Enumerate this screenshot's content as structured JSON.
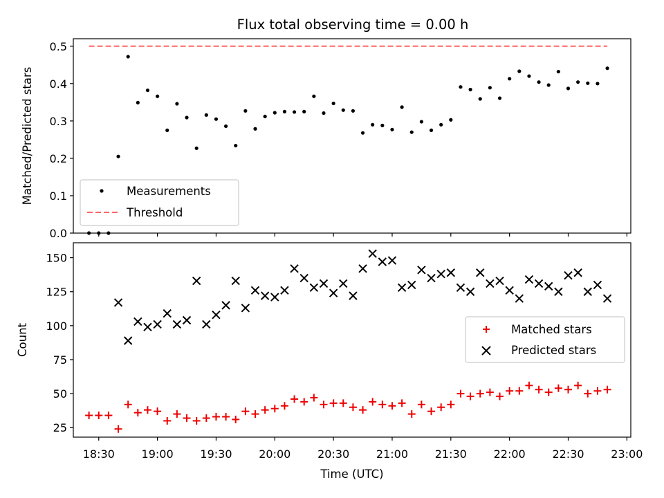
{
  "figure": {
    "title": "Flux total observing time = 0.00 h",
    "xlabel": "Time (UTC)"
  },
  "colors": {
    "measurement": "#000000",
    "threshold": "#ff6666",
    "matched": "#ee0000",
    "predicted": "#000000"
  },
  "chart_data": [
    {
      "type": "scatter",
      "ylabel": "Matched/Predicted stars",
      "ylim": [
        0,
        0.52
      ],
      "yticks": [
        0.0,
        0.1,
        0.2,
        0.3,
        0.4,
        0.5
      ],
      "ytick_labels": [
        "0.0",
        "0.1",
        "0.2",
        "0.3",
        "0.4",
        "0.5"
      ],
      "xlim": [
        "18:17",
        "23:02"
      ],
      "grid": false,
      "legend_position": "lower-left",
      "series": [
        {
          "name": "Measurements",
          "marker": "dot",
          "x": [
            "18:25",
            "18:30",
            "18:35",
            "18:40",
            "18:45",
            "18:50",
            "18:55",
            "19:00",
            "19:05",
            "19:10",
            "19:15",
            "19:20",
            "19:25",
            "19:30",
            "19:35",
            "19:40",
            "19:45",
            "19:50",
            "19:55",
            "20:00",
            "20:05",
            "20:10",
            "20:15",
            "20:20",
            "20:25",
            "20:30",
            "20:35",
            "20:40",
            "20:45",
            "20:50",
            "20:55",
            "21:00",
            "21:05",
            "21:10",
            "21:15",
            "21:20",
            "21:25",
            "21:30",
            "21:35",
            "21:40",
            "21:45",
            "21:50",
            "21:55",
            "22:00",
            "22:05",
            "22:10",
            "22:15",
            "22:20",
            "22:25",
            "22:30",
            "22:35",
            "22:40",
            "22:45",
            "22:50"
          ],
          "y": [
            0.0,
            0.0,
            0.0,
            0.205,
            0.472,
            0.349,
            0.382,
            0.366,
            0.275,
            0.346,
            0.309,
            0.227,
            0.316,
            0.305,
            0.286,
            0.234,
            0.327,
            0.279,
            0.312,
            0.322,
            0.325,
            0.324,
            0.325,
            0.366,
            0.321,
            0.347,
            0.329,
            0.327,
            0.268,
            0.29,
            0.288,
            0.277,
            0.337,
            0.27,
            0.298,
            0.275,
            0.29,
            0.303,
            0.391,
            0.384,
            0.359,
            0.389,
            0.361,
            0.413,
            0.433,
            0.42,
            0.404,
            0.396,
            0.432,
            0.387,
            0.404,
            0.401,
            0.4,
            0.441
          ]
        },
        {
          "name": "Threshold",
          "type": "line",
          "style": "dashed",
          "x": [
            "18:25",
            "22:50"
          ],
          "y": [
            0.5,
            0.5
          ]
        }
      ]
    },
    {
      "type": "scatter",
      "ylabel": "Count",
      "ylim": [
        18,
        161
      ],
      "yticks": [
        25,
        50,
        75,
        100,
        125,
        150
      ],
      "ytick_labels": [
        "25",
        "50",
        "75",
        "100",
        "125",
        "150"
      ],
      "xlim": [
        "18:17",
        "23:02"
      ],
      "xticks": [
        "18:30",
        "19:00",
        "19:30",
        "20:00",
        "20:30",
        "21:00",
        "21:30",
        "22:00",
        "22:30",
        "23:00"
      ],
      "grid": false,
      "legend_position": "center-right",
      "series": [
        {
          "name": "Matched stars",
          "marker": "plus",
          "x": [
            "18:25",
            "18:30",
            "18:35",
            "18:40",
            "18:45",
            "18:50",
            "18:55",
            "19:00",
            "19:05",
            "19:10",
            "19:15",
            "19:20",
            "19:25",
            "19:30",
            "19:35",
            "19:40",
            "19:45",
            "19:50",
            "19:55",
            "20:00",
            "20:05",
            "20:10",
            "20:15",
            "20:20",
            "20:25",
            "20:30",
            "20:35",
            "20:40",
            "20:45",
            "20:50",
            "20:55",
            "21:00",
            "21:05",
            "21:10",
            "21:15",
            "21:20",
            "21:25",
            "21:30",
            "21:35",
            "21:40",
            "21:45",
            "21:50",
            "21:55",
            "22:00",
            "22:05",
            "22:10",
            "22:15",
            "22:20",
            "22:25",
            "22:30",
            "22:35",
            "22:40",
            "22:45",
            "22:50"
          ],
          "y": [
            34,
            34,
            34,
            24,
            42,
            36,
            38,
            37,
            30,
            35,
            32,
            30,
            32,
            33,
            33,
            31,
            37,
            35,
            38,
            39,
            41,
            46,
            44,
            47,
            42,
            43,
            43,
            40,
            38,
            44,
            42,
            41,
            43,
            35,
            42,
            37,
            40,
            42,
            50,
            48,
            50,
            51,
            48,
            52,
            52,
            56,
            53,
            51,
            54,
            53,
            56,
            50,
            52,
            53
          ]
        },
        {
          "name": "Predicted stars",
          "marker": "x",
          "x": [
            "18:40",
            "18:45",
            "18:50",
            "18:55",
            "19:00",
            "19:05",
            "19:10",
            "19:15",
            "19:20",
            "19:25",
            "19:30",
            "19:35",
            "19:40",
            "19:45",
            "19:50",
            "19:55",
            "20:00",
            "20:05",
            "20:10",
            "20:15",
            "20:20",
            "20:25",
            "20:30",
            "20:35",
            "20:40",
            "20:45",
            "20:50",
            "20:55",
            "21:00",
            "21:05",
            "21:10",
            "21:15",
            "21:20",
            "21:25",
            "21:30",
            "21:35",
            "21:40",
            "21:45",
            "21:50",
            "21:55",
            "22:00",
            "22:05",
            "22:10",
            "22:15",
            "22:20",
            "22:25",
            "22:30",
            "22:35",
            "22:40",
            "22:45",
            "22:50"
          ],
          "y": [
            117,
            89,
            103,
            99,
            101,
            109,
            101,
            104,
            133,
            101,
            108,
            115,
            133,
            113,
            126,
            122,
            121,
            126,
            142,
            135,
            128,
            131,
            124,
            131,
            122,
            142,
            153,
            147,
            148,
            128,
            130,
            141,
            135,
            138,
            139,
            128,
            125,
            139,
            131,
            133,
            126,
            120,
            134,
            131,
            129,
            125,
            137,
            139,
            125,
            130,
            120
          ]
        }
      ]
    }
  ]
}
